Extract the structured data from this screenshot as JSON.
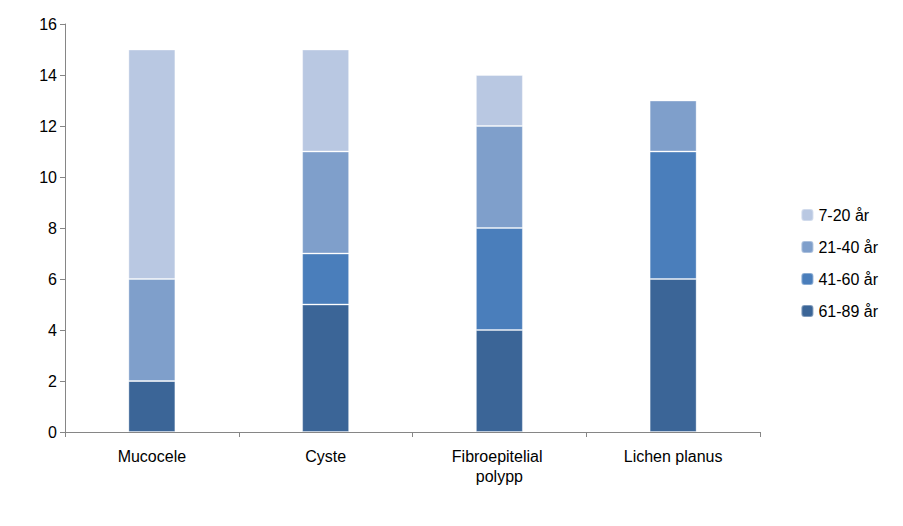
{
  "chart_data": {
    "type": "bar",
    "categories": [
      "Mucocele",
      "Cyste",
      "Fibroepitelial polypp",
      "Lichen planus"
    ],
    "series": [
      {
        "name": "61-89 år",
        "color": "#3b6597",
        "values": [
          2,
          5,
          4,
          6
        ]
      },
      {
        "name": "41-60 år",
        "color": "#4a7ebb",
        "values": [
          0,
          2,
          4,
          5
        ]
      },
      {
        "name": "21-40 år",
        "color": "#7f9fcb",
        "values": [
          4,
          4,
          4,
          2
        ]
      },
      {
        "name": "7-20 år",
        "color": "#b9c8e2",
        "values": [
          9,
          4,
          2,
          0
        ]
      }
    ],
    "stacked": true,
    "ylim": [
      0,
      16
    ],
    "yticks": [
      0,
      2,
      4,
      6,
      8,
      10,
      12,
      14,
      16
    ],
    "grid": false,
    "legend": "right"
  }
}
